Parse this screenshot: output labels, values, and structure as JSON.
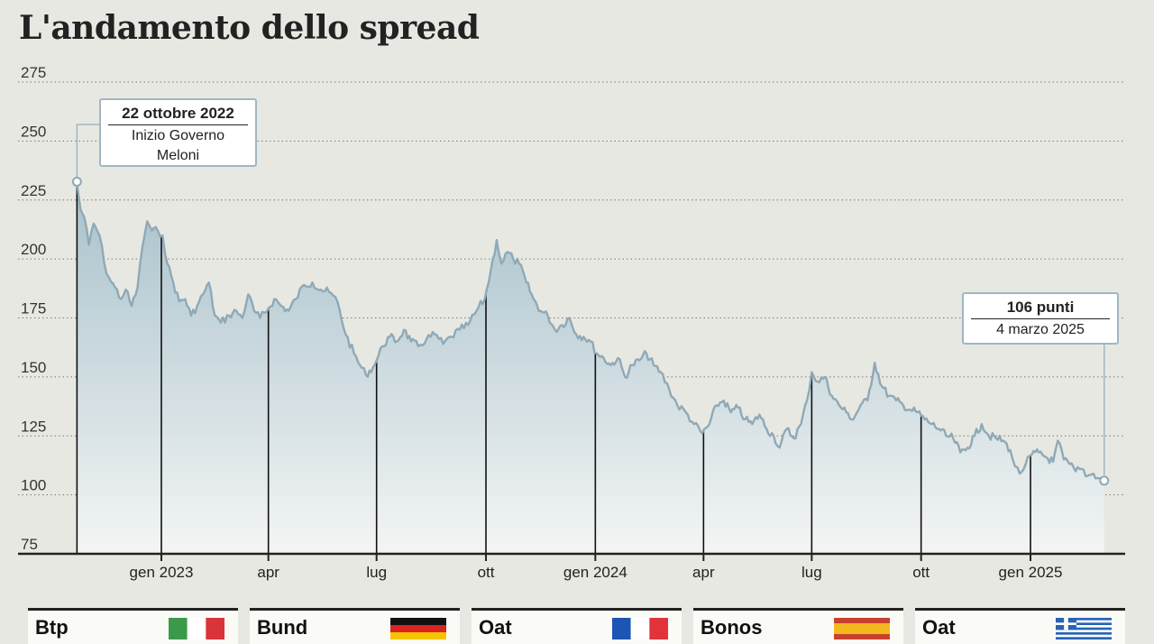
{
  "title": "L'andamento dello spread",
  "chart_data": {
    "type": "area",
    "ylim": [
      75,
      275
    ],
    "y_ticks": [
      275,
      250,
      225,
      200,
      175,
      150,
      125,
      100,
      75
    ],
    "x_ticks": [
      {
        "label": "gen 2023",
        "date": "2023-01-01"
      },
      {
        "label": "apr",
        "date": "2023-04-01"
      },
      {
        "label": "lug",
        "date": "2023-07-01"
      },
      {
        "label": "ott",
        "date": "2023-10-01"
      },
      {
        "label": "gen 2024",
        "date": "2024-01-01"
      },
      {
        "label": "apr",
        "date": "2024-04-01"
      },
      {
        "label": "lug",
        "date": "2024-07-01"
      },
      {
        "label": "ott",
        "date": "2024-10-01"
      },
      {
        "label": "gen 2025",
        "date": "2025-01-01"
      }
    ],
    "series": [
      {
        "values": [
          [
            "2022-10-22",
            232
          ],
          [
            "2022-10-25",
            221
          ],
          [
            "2022-10-28",
            218
          ],
          [
            "2022-11-01",
            206
          ],
          [
            "2022-11-05",
            215
          ],
          [
            "2022-11-10",
            210
          ],
          [
            "2022-11-14",
            198
          ],
          [
            "2022-11-18",
            192
          ],
          [
            "2022-11-23",
            188
          ],
          [
            "2022-11-28",
            183
          ],
          [
            "2022-12-02",
            187
          ],
          [
            "2022-12-07",
            180
          ],
          [
            "2022-12-12",
            188
          ],
          [
            "2022-12-16",
            205
          ],
          [
            "2022-12-20",
            216
          ],
          [
            "2022-12-24",
            212
          ],
          [
            "2022-12-29",
            212
          ],
          [
            "2023-01-02",
            210
          ],
          [
            "2023-01-06",
            198
          ],
          [
            "2023-01-11",
            190
          ],
          [
            "2023-01-16",
            182
          ],
          [
            "2023-01-21",
            183
          ],
          [
            "2023-01-26",
            176
          ],
          [
            "2023-01-31",
            180
          ],
          [
            "2023-02-05",
            185
          ],
          [
            "2023-02-10",
            190
          ],
          [
            "2023-02-15",
            176
          ],
          [
            "2023-02-20",
            173
          ],
          [
            "2023-02-27",
            176
          ],
          [
            "2023-03-05",
            178
          ],
          [
            "2023-03-10",
            175
          ],
          [
            "2023-03-15",
            185
          ],
          [
            "2023-03-20",
            178
          ],
          [
            "2023-03-25",
            175
          ],
          [
            "2023-04-01",
            179
          ],
          [
            "2023-04-06",
            183
          ],
          [
            "2023-04-12",
            180
          ],
          [
            "2023-04-18",
            178
          ],
          [
            "2023-04-24",
            183
          ],
          [
            "2023-05-01",
            189
          ],
          [
            "2023-05-08",
            190
          ],
          [
            "2023-05-15",
            187
          ],
          [
            "2023-05-22",
            186
          ],
          [
            "2023-05-29",
            182
          ],
          [
            "2023-06-05",
            168
          ],
          [
            "2023-06-12",
            160
          ],
          [
            "2023-06-17",
            155
          ],
          [
            "2023-06-22",
            151
          ],
          [
            "2023-06-28",
            154
          ],
          [
            "2023-07-01",
            157
          ],
          [
            "2023-07-06",
            163
          ],
          [
            "2023-07-12",
            167
          ],
          [
            "2023-07-18",
            165
          ],
          [
            "2023-07-24",
            170
          ],
          [
            "2023-07-30",
            165
          ],
          [
            "2023-08-05",
            163
          ],
          [
            "2023-08-12",
            166
          ],
          [
            "2023-08-19",
            168
          ],
          [
            "2023-08-26",
            164
          ],
          [
            "2023-09-02",
            167
          ],
          [
            "2023-09-09",
            170
          ],
          [
            "2023-09-16",
            172
          ],
          [
            "2023-09-23",
            178
          ],
          [
            "2023-09-30",
            183
          ],
          [
            "2023-10-05",
            195
          ],
          [
            "2023-10-10",
            208
          ],
          [
            "2023-10-14",
            198
          ],
          [
            "2023-10-19",
            203
          ],
          [
            "2023-10-24",
            200
          ],
          [
            "2023-10-29",
            198
          ],
          [
            "2023-11-04",
            190
          ],
          [
            "2023-11-10",
            183
          ],
          [
            "2023-11-16",
            178
          ],
          [
            "2023-11-22",
            176
          ],
          [
            "2023-11-28",
            170
          ],
          [
            "2023-12-04",
            172
          ],
          [
            "2023-12-10",
            175
          ],
          [
            "2023-12-16",
            168
          ],
          [
            "2023-12-22",
            167
          ],
          [
            "2023-12-28",
            165
          ],
          [
            "2024-01-02",
            160
          ],
          [
            "2024-01-08",
            158
          ],
          [
            "2024-01-14",
            155
          ],
          [
            "2024-01-20",
            158
          ],
          [
            "2024-01-26",
            150
          ],
          [
            "2024-02-01",
            155
          ],
          [
            "2024-02-07",
            157
          ],
          [
            "2024-02-13",
            160
          ],
          [
            "2024-02-19",
            155
          ],
          [
            "2024-02-25",
            152
          ],
          [
            "2024-03-03",
            145
          ],
          [
            "2024-03-10",
            138
          ],
          [
            "2024-03-17",
            135
          ],
          [
            "2024-03-24",
            130
          ],
          [
            "2024-03-31",
            126
          ],
          [
            "2024-04-06",
            130
          ],
          [
            "2024-04-12",
            138
          ],
          [
            "2024-04-18",
            140
          ],
          [
            "2024-04-24",
            135
          ],
          [
            "2024-04-30",
            137
          ],
          [
            "2024-05-06",
            132
          ],
          [
            "2024-05-12",
            130
          ],
          [
            "2024-05-18",
            134
          ],
          [
            "2024-05-24",
            128
          ],
          [
            "2024-05-30",
            125
          ],
          [
            "2024-06-04",
            120
          ],
          [
            "2024-06-10",
            128
          ],
          [
            "2024-06-16",
            124
          ],
          [
            "2024-06-22",
            130
          ],
          [
            "2024-06-27",
            140
          ],
          [
            "2024-07-01",
            152
          ],
          [
            "2024-07-06",
            148
          ],
          [
            "2024-07-12",
            150
          ],
          [
            "2024-07-18",
            142
          ],
          [
            "2024-07-24",
            138
          ],
          [
            "2024-07-30",
            135
          ],
          [
            "2024-08-05",
            132
          ],
          [
            "2024-08-11",
            138
          ],
          [
            "2024-08-17",
            140
          ],
          [
            "2024-08-23",
            156
          ],
          [
            "2024-08-29",
            146
          ],
          [
            "2024-09-04",
            142
          ],
          [
            "2024-09-10",
            140
          ],
          [
            "2024-09-16",
            138
          ],
          [
            "2024-09-22",
            136
          ],
          [
            "2024-09-28",
            135
          ],
          [
            "2024-10-04",
            132
          ],
          [
            "2024-10-10",
            130
          ],
          [
            "2024-10-16",
            128
          ],
          [
            "2024-10-22",
            125
          ],
          [
            "2024-10-28",
            124
          ],
          [
            "2024-11-03",
            118
          ],
          [
            "2024-11-09",
            120
          ],
          [
            "2024-11-15",
            125
          ],
          [
            "2024-11-21",
            130
          ],
          [
            "2024-11-27",
            125
          ],
          [
            "2024-12-03",
            124
          ],
          [
            "2024-12-09",
            123
          ],
          [
            "2024-12-15",
            119
          ],
          [
            "2024-12-19",
            112
          ],
          [
            "2024-12-23",
            109
          ],
          [
            "2024-12-28",
            113
          ],
          [
            "2025-01-02",
            117
          ],
          [
            "2025-01-08",
            118
          ],
          [
            "2025-01-14",
            116
          ],
          [
            "2025-01-20",
            114
          ],
          [
            "2025-01-24",
            123
          ],
          [
            "2025-01-29",
            115
          ],
          [
            "2025-02-03",
            113
          ],
          [
            "2025-02-08",
            110
          ],
          [
            "2025-02-13",
            111
          ],
          [
            "2025-02-18",
            108
          ],
          [
            "2025-02-23",
            109
          ],
          [
            "2025-02-28",
            107
          ],
          [
            "2025-03-04",
            106
          ]
        ]
      }
    ],
    "annotations": [
      {
        "date": "2022-10-22",
        "value": 232,
        "heading": "22 ottobre 2022",
        "text_lines": [
          "Inizio Governo",
          "Meloni"
        ]
      },
      {
        "date": "2025-03-04",
        "value": 106,
        "heading": "106 punti",
        "text_lines": [
          "4 marzo 2025"
        ]
      }
    ],
    "colors": {
      "line": "#8fa9b6",
      "fill_top": "#a8c1cc",
      "fill_bottom": "#f3f5f4",
      "axis": "#222222",
      "grid": "#777777",
      "marker": "#ffffff"
    }
  },
  "legend": [
    {
      "name": "Btp",
      "flag": "italy-flag-icon"
    },
    {
      "name": "Bund",
      "flag": "germany-flag-icon"
    },
    {
      "name": "Oat",
      "flag": "france-flag-icon"
    },
    {
      "name": "Bonos",
      "flag": "spain-flag-icon"
    },
    {
      "name": "Oat",
      "flag": "greece-flag-icon"
    }
  ]
}
